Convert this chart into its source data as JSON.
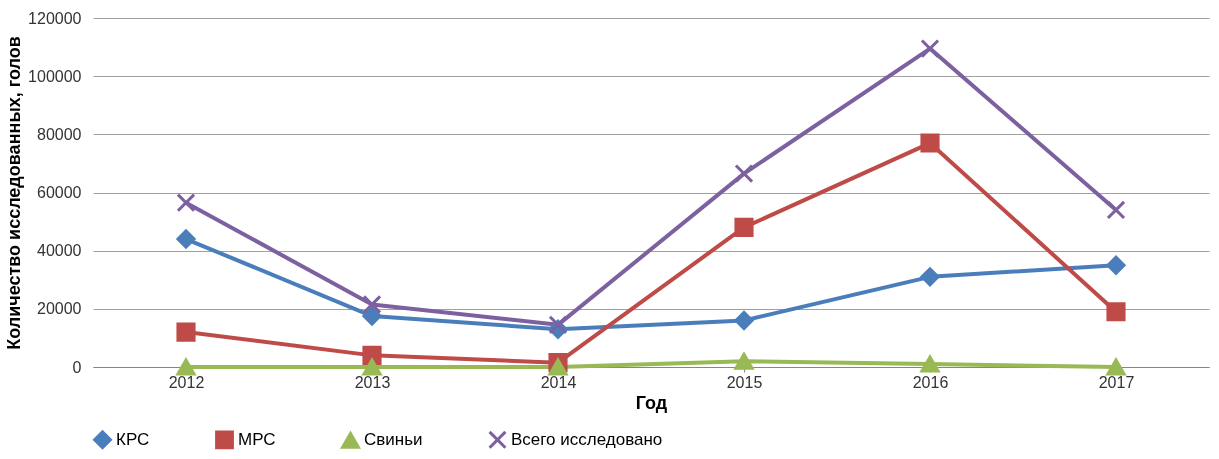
{
  "chart_data": {
    "type": "line",
    "xlabel": "Год",
    "ylabel": "Количество исследованных, голов",
    "categories": [
      "2012",
      "2013",
      "2014",
      "2015",
      "2016",
      "2017"
    ],
    "series": [
      {
        "name": "КРС",
        "color": "#4a7ebb",
        "marker": "diamond",
        "values": [
          44000,
          17500,
          13000,
          16000,
          31000,
          35000
        ]
      },
      {
        "name": "МРС",
        "color": "#be4b48",
        "marker": "square",
        "values": [
          12000,
          4000,
          1500,
          48000,
          77000,
          19000
        ]
      },
      {
        "name": "Свиньи",
        "color": "#98b954",
        "marker": "triangle",
        "values": [
          0,
          0,
          0,
          2000,
          1000,
          0
        ]
      },
      {
        "name": "Всего исследовано",
        "color": "#7d60a0",
        "marker": "cross",
        "values": [
          56500,
          21500,
          14500,
          66500,
          109500,
          54000
        ]
      }
    ],
    "ylim": [
      0,
      120000
    ],
    "yticks": [
      0,
      20000,
      40000,
      60000,
      80000,
      100000,
      120000
    ],
    "grid": "y",
    "legend": "bottom"
  }
}
